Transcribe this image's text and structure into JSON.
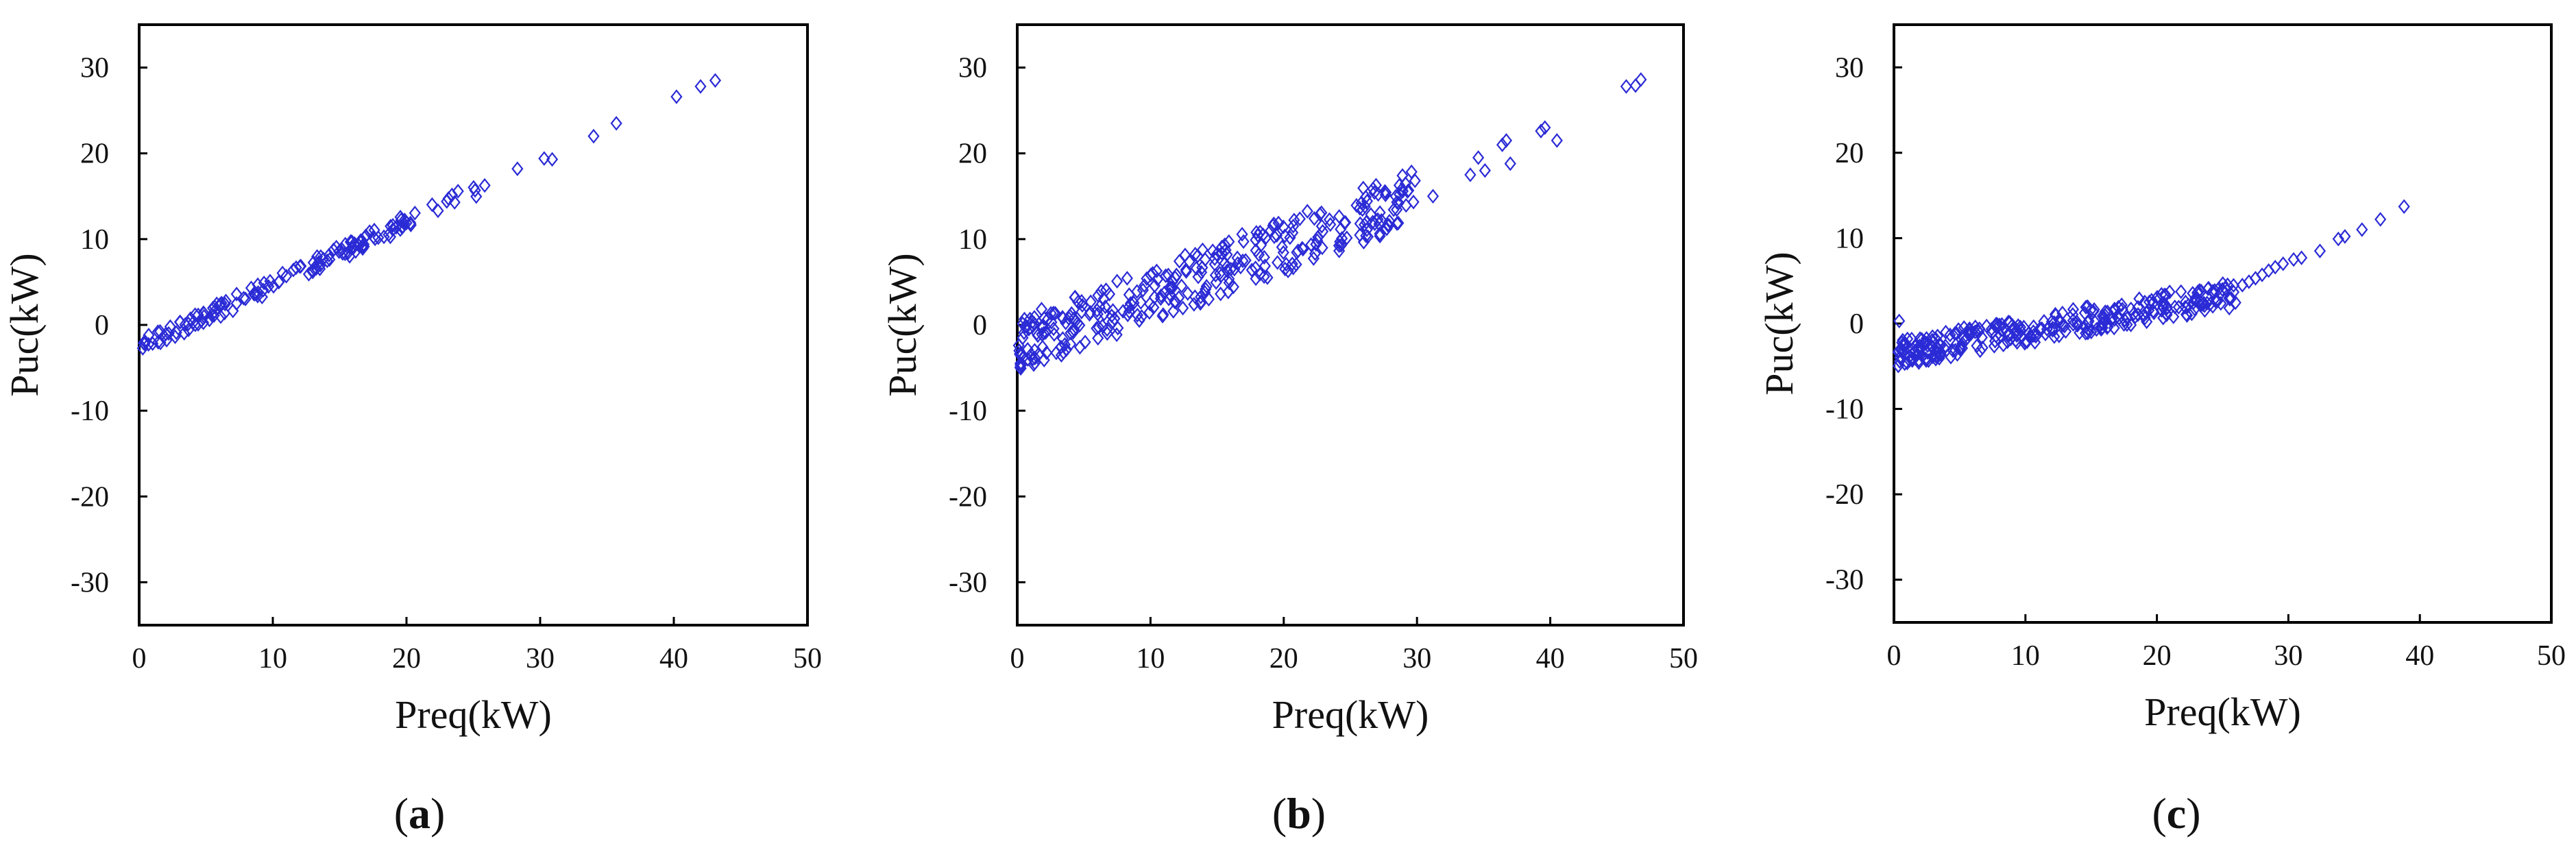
{
  "chart_data": [
    {
      "type": "scatter",
      "caption_open": "(",
      "caption_letter": "a",
      "caption_close": ")",
      "xlabel": "Preq(kW)",
      "ylabel": "Puc(kW)",
      "xlim": [
        0,
        50
      ],
      "ylim": [
        -35,
        35
      ],
      "xticks": [
        "0",
        "10",
        "20",
        "30",
        "40",
        "50"
      ],
      "yticks": [
        "30",
        "20",
        "10",
        "0",
        "-10",
        "-20",
        "-30"
      ],
      "xtick_values": [
        0,
        10,
        20,
        30,
        40,
        50
      ],
      "ytick_values": [
        30,
        20,
        10,
        0,
        -10,
        -20,
        -30
      ],
      "marker": "diamond",
      "color": "#2b2bd6",
      "trend": {
        "x_start": 0.2,
        "x_end": 26.0,
        "slope": 0.73,
        "intercept": -2.6,
        "band": 0.9,
        "count": 150
      },
      "extra_points": [
        [
          28.3,
          18.2
        ],
        [
          30.3,
          19.4
        ],
        [
          30.9,
          19.3
        ],
        [
          34.0,
          22.0
        ],
        [
          35.7,
          23.5
        ],
        [
          40.2,
          26.6
        ],
        [
          42.0,
          27.8
        ],
        [
          43.1,
          28.5
        ]
      ]
    },
    {
      "type": "scatter",
      "caption_open": "(",
      "caption_letter": "b",
      "caption_close": ")",
      "xlabel": "Preq(kW)",
      "ylabel": "Puc(kW)",
      "xlim": [
        0,
        50
      ],
      "ylim": [
        -35,
        35
      ],
      "xticks": [
        "0",
        "10",
        "20",
        "30",
        "40",
        "50"
      ],
      "yticks": [
        "30",
        "20",
        "10",
        "0",
        "-10",
        "-20",
        "-30"
      ],
      "xtick_values": [
        0,
        10,
        20,
        30,
        40,
        50
      ],
      "ytick_values": [
        30,
        20,
        10,
        0,
        -10,
        -20,
        -30
      ],
      "marker": "diamond",
      "color": "#2b2bd6",
      "trend": {
        "x_start": 0.1,
        "x_end": 30.0,
        "slope": 0.58,
        "intercept": -2.3,
        "band": 3.2,
        "count": 330
      },
      "extra_points": [
        [
          31.2,
          15.0
        ],
        [
          34.0,
          17.5
        ],
        [
          34.6,
          19.5
        ],
        [
          35.1,
          18.0
        ],
        [
          36.4,
          21.0
        ],
        [
          36.7,
          21.5
        ],
        [
          37.0,
          18.8
        ],
        [
          39.3,
          22.6
        ],
        [
          39.6,
          23.0
        ],
        [
          40.5,
          21.5
        ],
        [
          45.7,
          27.8
        ],
        [
          46.4,
          27.9
        ],
        [
          46.8,
          28.6
        ]
      ]
    },
    {
      "type": "scatter",
      "caption_open": "(",
      "caption_letter": "c",
      "caption_close": ")",
      "xlabel": "Preq(kW)",
      "ylabel": "Puc(kW)",
      "xlim": [
        0,
        50
      ],
      "ylim": [
        -35,
        35
      ],
      "xticks": [
        "0",
        "10",
        "20",
        "30",
        "40",
        "50"
      ],
      "yticks": [
        "30",
        "20",
        "10",
        "0",
        "-10",
        "-20",
        "-30"
      ],
      "xtick_values": [
        0,
        10,
        20,
        30,
        40,
        50
      ],
      "ytick_values": [
        30,
        20,
        10,
        0,
        -10,
        -20,
        -30
      ],
      "marker": "diamond",
      "color": "#2b2bd6",
      "trend": {
        "x_start": 0.3,
        "x_end": 26.0,
        "slope": 0.27,
        "intercept": -3.5,
        "band": 1.6,
        "count": 300
      },
      "extra_points": [
        [
          0.4,
          0.3
        ],
        [
          26.5,
          4.5
        ],
        [
          27.0,
          4.9
        ],
        [
          27.5,
          5.3
        ],
        [
          28.0,
          5.7
        ],
        [
          28.5,
          6.2
        ],
        [
          29.0,
          6.6
        ],
        [
          29.6,
          7.0
        ],
        [
          30.4,
          7.5
        ],
        [
          31.0,
          7.7
        ],
        [
          32.4,
          8.5
        ],
        [
          33.8,
          9.9
        ],
        [
          34.3,
          10.2
        ],
        [
          35.6,
          11.0
        ],
        [
          37.0,
          12.2
        ],
        [
          38.8,
          13.7
        ]
      ]
    }
  ]
}
